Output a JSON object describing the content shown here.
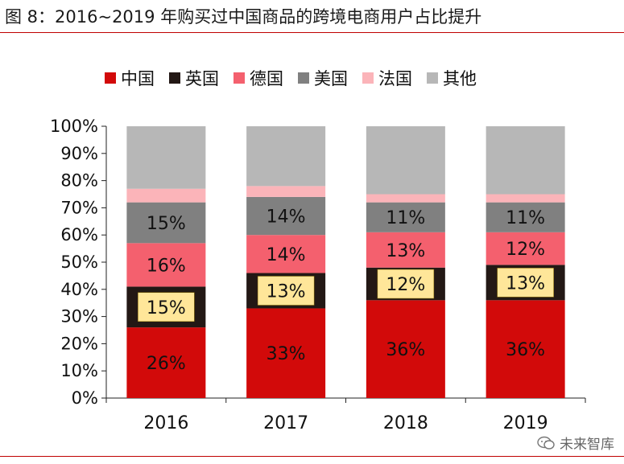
{
  "title": "图 8：2016~2019 年购买过中国商品的跨境电商用户占比提升",
  "watermark": "未来智库",
  "chart_data": {
    "type": "bar",
    "stacked": true,
    "categories": [
      "2016",
      "2017",
      "2018",
      "2019"
    ],
    "ylim": [
      0,
      100
    ],
    "yticks": [
      "0%",
      "10%",
      "20%",
      "30%",
      "40%",
      "50%",
      "60%",
      "70%",
      "80%",
      "90%",
      "100%"
    ],
    "legend_position": "top",
    "grid": false,
    "series": [
      {
        "name": "中国",
        "color": "#d20a0a",
        "values": [
          26,
          33,
          36,
          36
        ],
        "labels": [
          "26%",
          "33%",
          "36%",
          "36%"
        ],
        "label_color": "#111111"
      },
      {
        "name": "英国",
        "color": "#231815",
        "values": [
          15,
          13,
          12,
          13
        ],
        "labels": [
          "15%",
          "13%",
          "12%",
          "13%"
        ],
        "label_box": "#ffe699"
      },
      {
        "name": "德国",
        "color": "#f4606e",
        "values": [
          16,
          14,
          13,
          12
        ],
        "labels": [
          "16%",
          "14%",
          "13%",
          "12%"
        ],
        "label_color": "#111111"
      },
      {
        "name": "美国",
        "color": "#808080",
        "values": [
          15,
          14,
          11,
          11
        ],
        "labels": [
          "15%",
          "14%",
          "11%",
          "11%"
        ],
        "label_color": "#111111"
      },
      {
        "name": "法国",
        "color": "#fbb4b9",
        "values": [
          5,
          4,
          3,
          3
        ],
        "labels": [
          "",
          "",
          "",
          ""
        ]
      },
      {
        "name": "其他",
        "color": "#b7b7b7",
        "values": [
          23,
          22,
          25,
          25
        ],
        "labels": [
          "",
          "",
          "",
          ""
        ]
      }
    ]
  }
}
